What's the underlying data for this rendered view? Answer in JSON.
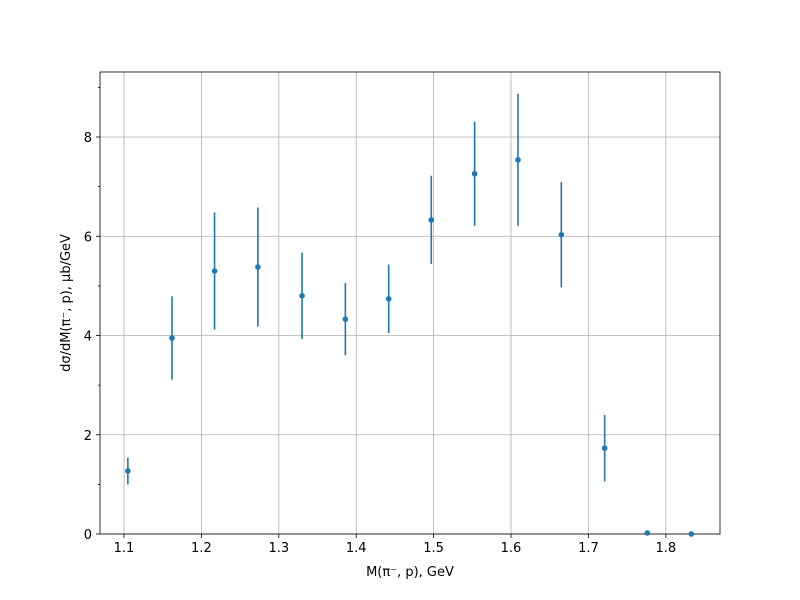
{
  "chart_data": {
    "type": "errorbar",
    "x_label": "M(π⁻, p), GeV",
    "y_label": "dσ/dM(π⁻, p), μb/GeV",
    "x": [
      1.105,
      1.162,
      1.217,
      1.273,
      1.33,
      1.386,
      1.442,
      1.497,
      1.553,
      1.609,
      1.665,
      1.721,
      1.776,
      1.833
    ],
    "series": [
      {
        "color": "#1f77b4",
        "values": [
          1.27,
          3.95,
          5.3,
          5.38,
          4.8,
          4.33,
          4.74,
          6.33,
          7.26,
          7.54,
          6.03,
          1.73,
          0.02,
          0
        ],
        "errors": [
          0.27,
          0.84,
          1.18,
          1.2,
          0.87,
          0.73,
          0.69,
          0.89,
          1.05,
          1.33,
          1.06,
          0.67,
          0,
          0
        ]
      }
    ],
    "xlim": [
      1.069,
      1.87
    ],
    "ylim": [
      0,
      9.31
    ],
    "xticks": [
      1.1,
      1.2,
      1.3,
      1.4,
      1.5,
      1.6,
      1.7,
      1.8
    ],
    "yticks": [
      0,
      2,
      4,
      6,
      8
    ],
    "yminorticks": [
      1,
      3,
      5,
      7,
      9
    ],
    "grid": true
  }
}
